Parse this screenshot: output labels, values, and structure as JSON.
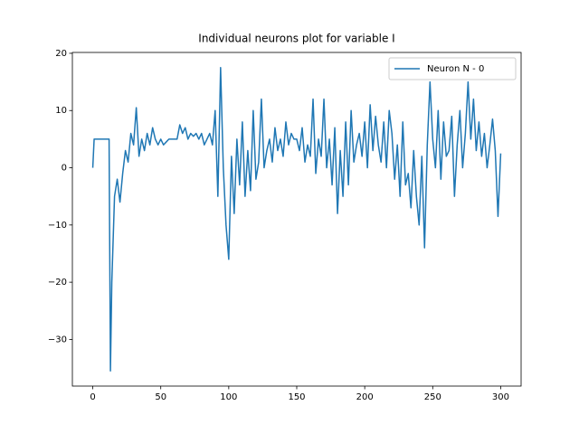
{
  "chart_data": {
    "type": "line",
    "title": "Individual neurons plot for variable I",
    "x": [
      0,
      1,
      2,
      4,
      6,
      8,
      10,
      12,
      13,
      14,
      16,
      18,
      20,
      22,
      24,
      26,
      28,
      30,
      32,
      34,
      36,
      38,
      40,
      42,
      44,
      46,
      48,
      50,
      52,
      54,
      56,
      58,
      60,
      62,
      64,
      66,
      68,
      70,
      72,
      74,
      76,
      78,
      80,
      82,
      84,
      86,
      88,
      90,
      92,
      94,
      96,
      98,
      100,
      102,
      104,
      106,
      108,
      110,
      112,
      114,
      116,
      118,
      120,
      122,
      124,
      126,
      128,
      130,
      132,
      134,
      136,
      138,
      140,
      142,
      144,
      146,
      148,
      150,
      152,
      154,
      156,
      158,
      160,
      162,
      164,
      166,
      168,
      170,
      172,
      174,
      176,
      178,
      180,
      182,
      184,
      186,
      188,
      190,
      192,
      194,
      196,
      198,
      200,
      202,
      204,
      206,
      208,
      210,
      212,
      214,
      216,
      218,
      220,
      222,
      224,
      226,
      228,
      230,
      232,
      234,
      236,
      238,
      240,
      242,
      244,
      246,
      248,
      250,
      252,
      254,
      256,
      258,
      260,
      262,
      264,
      266,
      268,
      270,
      272,
      274,
      276,
      278,
      280,
      282,
      284,
      286,
      288,
      290,
      292,
      294,
      296,
      298,
      300
    ],
    "series": [
      {
        "name": "Neuron N - 0",
        "color": "#1f77b4",
        "values": [
          0,
          5,
          5,
          5,
          5,
          5,
          5,
          5,
          -35.5,
          -20,
          -5,
          -2,
          -6,
          -1,
          3,
          1,
          6,
          4,
          10.5,
          2,
          5,
          3,
          6,
          4,
          7,
          5,
          4,
          5,
          4,
          4.5,
          5,
          5,
          5,
          5,
          7.5,
          6,
          7,
          5,
          6,
          5.5,
          6,
          5,
          6,
          4,
          5,
          6,
          4,
          10,
          -5,
          17.5,
          0,
          -10,
          -16,
          2,
          -8,
          5,
          -3,
          8,
          -5,
          3,
          -4,
          10,
          -2,
          1,
          12,
          0,
          3,
          5,
          1,
          7,
          3,
          5,
          2,
          8,
          4,
          6,
          5,
          5,
          3,
          7,
          1,
          4,
          2,
          12,
          -1,
          5,
          2,
          12,
          0,
          5,
          -3,
          7,
          -8,
          3,
          -5,
          8,
          -3,
          10,
          1,
          4,
          6,
          2,
          8,
          0,
          11,
          3,
          9,
          4,
          1,
          8,
          0,
          10,
          6,
          -2,
          4,
          -5,
          8,
          -3,
          -1,
          -7,
          3,
          -5,
          -10,
          2,
          -14,
          4,
          15,
          5,
          0,
          10,
          -2,
          8,
          2,
          3,
          9,
          -5,
          4,
          10,
          0,
          6,
          15,
          5,
          12,
          3,
          8,
          2,
          6,
          0,
          4,
          8.5,
          3,
          -8.5,
          2.5
        ]
      }
    ],
    "xlim": [
      -15,
      315
    ],
    "ylim": [
      -38.15,
      20.15
    ],
    "xticks": [
      0,
      50,
      100,
      150,
      200,
      250,
      300
    ],
    "yticks": [
      {
        "value": -30,
        "label": "−30"
      },
      {
        "value": -20,
        "label": "−20"
      },
      {
        "value": -10,
        "label": "−10"
      },
      0,
      10,
      20
    ],
    "legend": "upper right"
  }
}
